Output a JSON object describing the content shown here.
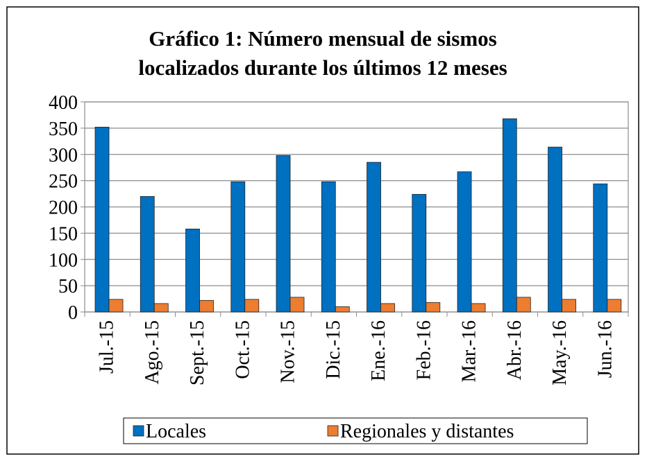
{
  "chart_data": {
    "type": "bar",
    "title": "Gráfico 1: Número mensual de sismos",
    "subtitle": "localizados durante los últimos 12 meses",
    "categories": [
      "Jul.-15",
      "Ago.-15",
      "Sept.-15",
      "Oct.-15",
      "Nov.-15",
      "Dic.-15",
      "Ene.-16",
      "Feb.-16",
      "Mar.-16",
      "Abr.-16",
      "May.-16",
      "Jun.-16"
    ],
    "series": [
      {
        "name": "Locales",
        "color": "#0070c0",
        "values": [
          352,
          220,
          158,
          248,
          298,
          248,
          285,
          224,
          267,
          368,
          314,
          244
        ]
      },
      {
        "name": "Regionales y distantes",
        "color": "#ed7d31",
        "values": [
          24,
          16,
          22,
          24,
          28,
          10,
          16,
          18,
          16,
          28,
          24,
          24
        ]
      }
    ],
    "ylim": [
      0,
      400
    ],
    "yticks": [
      0,
      50,
      100,
      150,
      200,
      250,
      300,
      350,
      400
    ],
    "grid": true,
    "legend": "bottom"
  }
}
